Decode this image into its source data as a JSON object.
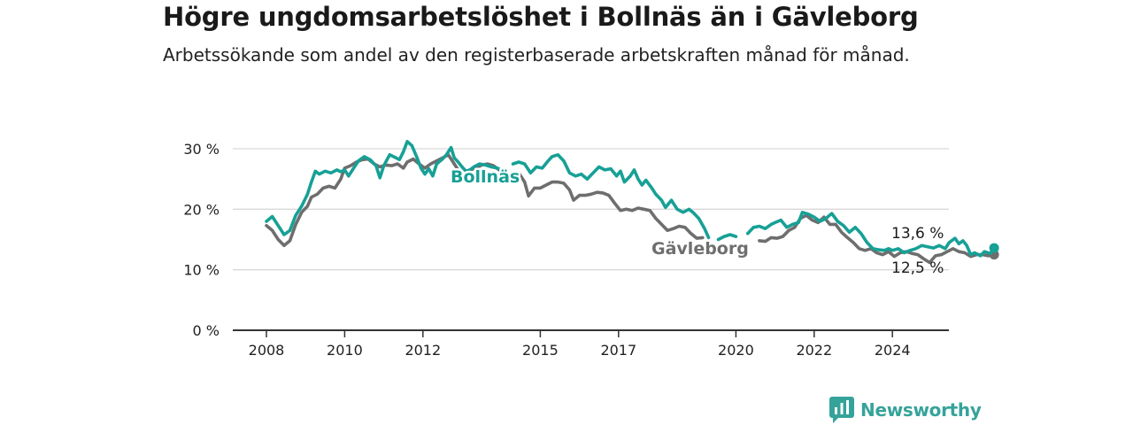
{
  "title": "Högre ungdomsarbetslöshet i Bollnäs än i Gävleborg",
  "subtitle": "Arbetssökande som andel av den registerbaserade arbetskraften månad för månad.",
  "brand": {
    "name": "Newsworthy",
    "icon": "bar-chart-logo-icon"
  },
  "colors": {
    "bollnas": "#17a096",
    "gavleborg": "#6e6e6e",
    "grid": "#d9d9d9",
    "axis": "#333333"
  },
  "chart_data": {
    "type": "line",
    "xlabel": "",
    "ylabel": "",
    "xlim": [
      2007.6,
      2025.8
    ],
    "ylim": [
      0,
      30
    ],
    "y_ticks": [
      0,
      10,
      20,
      30
    ],
    "y_tick_labels": [
      "0 %",
      "10 %",
      "20 %",
      "30 %"
    ],
    "x_ticks": [
      2008,
      2010,
      2012,
      2015,
      2017,
      2020,
      2022,
      2024
    ],
    "x_tick_labels": [
      "2008",
      "2010",
      "2012",
      "2015",
      "2017",
      "2020",
      "2022",
      "2024"
    ],
    "grid": true,
    "series": [
      {
        "name": "Bollnäs",
        "end_label": "13,6 %",
        "points": [
          [
            2008.0,
            18
          ],
          [
            2008.15,
            18.8
          ],
          [
            2008.3,
            17.3
          ],
          [
            2008.45,
            15.8
          ],
          [
            2008.6,
            16.5
          ],
          [
            2008.75,
            19
          ],
          [
            2008.9,
            20.5
          ],
          [
            2009.05,
            22.5
          ],
          [
            2009.15,
            24.5
          ],
          [
            2009.25,
            26.3
          ],
          [
            2009.35,
            25.8
          ],
          [
            2009.5,
            26.3
          ],
          [
            2009.65,
            26
          ],
          [
            2009.8,
            26.5
          ],
          [
            2009.9,
            26.2
          ],
          [
            2010.0,
            26.5
          ],
          [
            2010.1,
            25.5
          ],
          [
            2010.25,
            27
          ],
          [
            2010.35,
            28
          ],
          [
            2010.5,
            28.7
          ],
          [
            2010.65,
            28.2
          ],
          [
            2010.8,
            27.2
          ],
          [
            2010.9,
            25.2
          ],
          [
            2011.0,
            27.2
          ],
          [
            2011.15,
            29
          ],
          [
            2011.25,
            28.7
          ],
          [
            2011.4,
            28.2
          ],
          [
            2011.5,
            29.5
          ],
          [
            2011.6,
            31.2
          ],
          [
            2011.72,
            30.5
          ],
          [
            2011.85,
            28.5
          ],
          [
            2011.95,
            26.8
          ],
          [
            2012.05,
            25.8
          ],
          [
            2012.15,
            26.7
          ],
          [
            2012.25,
            25.5
          ],
          [
            2012.35,
            27.5
          ],
          [
            2012.5,
            28.3
          ],
          [
            2012.6,
            29
          ],
          [
            2012.72,
            30.2
          ],
          [
            2012.8,
            28.5
          ],
          [
            2012.9,
            27.8
          ],
          [
            2013.0,
            27
          ],
          [
            2013.1,
            26.3
          ],
          [
            2013.2,
            26.5
          ],
          [
            2013.3,
            27
          ],
          [
            2013.45,
            27.5
          ],
          [
            2013.6,
            27.3
          ],
          [
            2013.75,
            27
          ],
          [
            2013.9,
            26.8
          ],
          [
            2014.0,
            26.5
          ],
          [
            2014.1,
            26
          ],
          [
            null,
            null
          ],
          [
            2014.3,
            27.5
          ],
          [
            2014.45,
            27.8
          ],
          [
            2014.6,
            27.5
          ],
          [
            2014.75,
            26
          ],
          [
            2014.9,
            27
          ],
          [
            2015.05,
            26.8
          ],
          [
            2015.2,
            28
          ],
          [
            2015.3,
            28.7
          ],
          [
            2015.45,
            29
          ],
          [
            2015.6,
            28
          ],
          [
            2015.75,
            26
          ],
          [
            2015.9,
            25.5
          ],
          [
            2016.05,
            25.8
          ],
          [
            2016.2,
            25
          ],
          [
            2016.35,
            26
          ],
          [
            2016.5,
            27
          ],
          [
            2016.65,
            26.5
          ],
          [
            2016.8,
            26.7
          ],
          [
            2016.95,
            25.5
          ],
          [
            2017.05,
            26.3
          ],
          [
            2017.15,
            24.5
          ],
          [
            2017.3,
            25.5
          ],
          [
            2017.4,
            26.5
          ],
          [
            2017.5,
            25
          ],
          [
            2017.6,
            24
          ],
          [
            2017.7,
            24.8
          ],
          [
            2017.85,
            23.5
          ],
          [
            2017.95,
            22.5
          ],
          [
            2018.1,
            21.5
          ],
          [
            2018.2,
            20.3
          ],
          [
            2018.35,
            21.5
          ],
          [
            2018.5,
            20
          ],
          [
            2018.65,
            19.5
          ],
          [
            2018.8,
            20
          ],
          [
            2018.9,
            19.5
          ],
          [
            2019.05,
            18.5
          ],
          [
            2019.2,
            16.8
          ],
          [
            2019.3,
            15.3
          ],
          [
            null,
            null
          ],
          [
            2019.55,
            15
          ],
          [
            2019.7,
            15.5
          ],
          [
            2019.85,
            15.8
          ],
          [
            2020.0,
            15.5
          ],
          [
            null,
            null
          ],
          [
            2020.3,
            16
          ],
          [
            2020.45,
            17
          ],
          [
            2020.6,
            17.2
          ],
          [
            2020.75,
            16.8
          ],
          [
            2020.9,
            17.5
          ],
          [
            2021.0,
            17.8
          ],
          [
            2021.15,
            18.2
          ],
          [
            2021.3,
            17
          ],
          [
            2021.45,
            17.5
          ],
          [
            2021.6,
            17.8
          ],
          [
            2021.7,
            19.5
          ],
          [
            2021.85,
            19.2
          ],
          [
            2022.0,
            18.7
          ],
          [
            2022.15,
            18
          ],
          [
            2022.3,
            18.5
          ],
          [
            2022.45,
            19.3
          ],
          [
            2022.6,
            18
          ],
          [
            2022.75,
            17.3
          ],
          [
            2022.9,
            16.2
          ],
          [
            2023.05,
            17
          ],
          [
            2023.2,
            16
          ],
          [
            2023.35,
            14.5
          ],
          [
            2023.5,
            13.5
          ],
          [
            2023.65,
            13.3
          ],
          [
            2023.8,
            13.2
          ],
          [
            2023.9,
            13.5
          ],
          [
            2024.0,
            13.2
          ],
          [
            2024.15,
            13.5
          ],
          [
            2024.3,
            12.8
          ],
          [
            2024.45,
            13.2
          ],
          [
            2024.6,
            13.5
          ],
          [
            2024.75,
            14
          ],
          [
            2024.9,
            13.8
          ],
          [
            2025.05,
            13.6
          ],
          [
            2025.2,
            14
          ],
          [
            2025.35,
            13.5
          ],
          [
            2025.45,
            14.5
          ],
          [
            2025.6,
            15.2
          ],
          [
            2025.7,
            14.3
          ],
          [
            2025.8,
            14.8
          ],
          [
            2025.9,
            14
          ],
          [
            2026.0,
            12.5
          ],
          [
            2026.1,
            12.8
          ],
          [
            2026.25,
            12.3
          ],
          [
            2026.35,
            13
          ],
          [
            2026.5,
            12.7
          ],
          [
            2026.6,
            13.6
          ]
        ]
      },
      {
        "name": "Gävleborg",
        "end_label": "12,5 %",
        "points": [
          [
            2008.0,
            17.3
          ],
          [
            2008.15,
            16.5
          ],
          [
            2008.3,
            15
          ],
          [
            2008.45,
            14
          ],
          [
            2008.6,
            14.8
          ],
          [
            2008.75,
            17.5
          ],
          [
            2008.9,
            19.5
          ],
          [
            2009.05,
            20.5
          ],
          [
            2009.15,
            22
          ],
          [
            2009.3,
            22.5
          ],
          [
            2009.45,
            23.5
          ],
          [
            2009.6,
            23.8
          ],
          [
            2009.75,
            23.5
          ],
          [
            2009.9,
            25
          ],
          [
            2010.0,
            26.8
          ],
          [
            2010.15,
            27.2
          ],
          [
            2010.3,
            27.8
          ],
          [
            2010.45,
            28.2
          ],
          [
            2010.6,
            28.3
          ],
          [
            2010.75,
            27.5
          ],
          [
            2010.9,
            27
          ],
          [
            2011.05,
            27.3
          ],
          [
            2011.2,
            27.2
          ],
          [
            2011.35,
            27.5
          ],
          [
            2011.5,
            26.8
          ],
          [
            2011.6,
            27.8
          ],
          [
            2011.75,
            28.3
          ],
          [
            2011.9,
            27.5
          ],
          [
            2012.05,
            26.8
          ],
          [
            2012.2,
            27.5
          ],
          [
            2012.35,
            28
          ],
          [
            2012.5,
            28.5
          ],
          [
            2012.65,
            29
          ],
          [
            2012.8,
            27.5
          ],
          [
            2012.95,
            26
          ],
          [
            2013.1,
            25
          ],
          [
            2013.2,
            26.5
          ],
          [
            2013.35,
            26.8
          ],
          [
            2013.5,
            27.3
          ],
          [
            2013.65,
            27.5
          ],
          [
            2013.8,
            27.2
          ],
          [
            2013.95,
            26.5
          ],
          [
            null,
            null
          ],
          [
            2014.45,
            26
          ],
          [
            2014.6,
            24.5
          ],
          [
            2014.7,
            22.2
          ],
          [
            2014.85,
            23.5
          ],
          [
            2015.0,
            23.5
          ],
          [
            2015.15,
            24
          ],
          [
            2015.3,
            24.5
          ],
          [
            2015.45,
            24.5
          ],
          [
            2015.6,
            24.3
          ],
          [
            2015.75,
            23.2
          ],
          [
            2015.85,
            21.5
          ],
          [
            2016.0,
            22.3
          ],
          [
            2016.15,
            22.3
          ],
          [
            2016.3,
            22.5
          ],
          [
            2016.45,
            22.8
          ],
          [
            2016.6,
            22.7
          ],
          [
            2016.75,
            22.3
          ],
          [
            2016.9,
            21
          ],
          [
            2017.05,
            19.8
          ],
          [
            2017.2,
            20
          ],
          [
            2017.35,
            19.8
          ],
          [
            2017.5,
            20.2
          ],
          [
            2017.65,
            20
          ],
          [
            2017.8,
            19.8
          ],
          [
            2017.95,
            18.5
          ],
          [
            2018.1,
            17.5
          ],
          [
            2018.25,
            16.5
          ],
          [
            2018.4,
            16.8
          ],
          [
            2018.55,
            17.2
          ],
          [
            2018.7,
            17
          ],
          [
            2018.85,
            16
          ],
          [
            2019.0,
            15.2
          ],
          [
            2019.15,
            15.3
          ],
          [
            null,
            null
          ],
          [
            2020.6,
            14.8
          ],
          [
            2020.75,
            14.7
          ],
          [
            2020.9,
            15.3
          ],
          [
            2021.05,
            15.2
          ],
          [
            2021.2,
            15.5
          ],
          [
            2021.35,
            16.5
          ],
          [
            2021.5,
            17
          ],
          [
            2021.65,
            18.5
          ],
          [
            2021.8,
            19
          ],
          [
            2021.95,
            18.2
          ],
          [
            2022.1,
            17.8
          ],
          [
            2022.25,
            18.7
          ],
          [
            2022.4,
            17.5
          ],
          [
            2022.55,
            17.5
          ],
          [
            2022.7,
            16.2
          ],
          [
            2022.85,
            15.3
          ],
          [
            2023.0,
            14.5
          ],
          [
            2023.15,
            13.5
          ],
          [
            2023.3,
            13.2
          ],
          [
            2023.45,
            13.5
          ],
          [
            2023.6,
            12.8
          ],
          [
            2023.75,
            12.5
          ],
          [
            2023.9,
            13
          ],
          [
            2024.05,
            12.2
          ],
          [
            2024.2,
            12.8
          ],
          [
            2024.35,
            13
          ],
          [
            2024.5,
            12.7
          ],
          [
            2024.65,
            12.5
          ],
          [
            2024.8,
            11.8
          ],
          [
            2024.95,
            11.2
          ],
          [
            2025.1,
            12.3
          ],
          [
            2025.25,
            12.5
          ],
          [
            2025.4,
            13
          ],
          [
            2025.55,
            13.5
          ],
          [
            2025.7,
            13
          ],
          [
            2025.85,
            12.8
          ],
          [
            2026.0,
            12.2
          ],
          [
            2026.15,
            12.5
          ],
          [
            2026.3,
            12.5
          ],
          [
            2026.45,
            12.3
          ],
          [
            2026.6,
            12.5
          ]
        ]
      }
    ],
    "series_labels_inline": true
  }
}
